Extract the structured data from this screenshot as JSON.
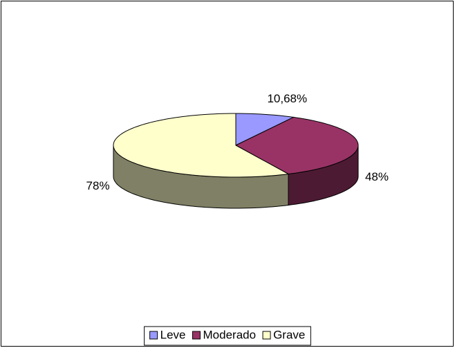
{
  "chart_data": {
    "type": "pie",
    "categories": [
      "Leve",
      "Moderado",
      "Grave"
    ],
    "values": [
      10.68,
      48,
      78
    ],
    "value_labels": [
      "10,68%",
      "48%",
      "78%"
    ],
    "colors": [
      "#9999ff",
      "#993366",
      "#ffffcc"
    ],
    "legend": "bottom"
  }
}
